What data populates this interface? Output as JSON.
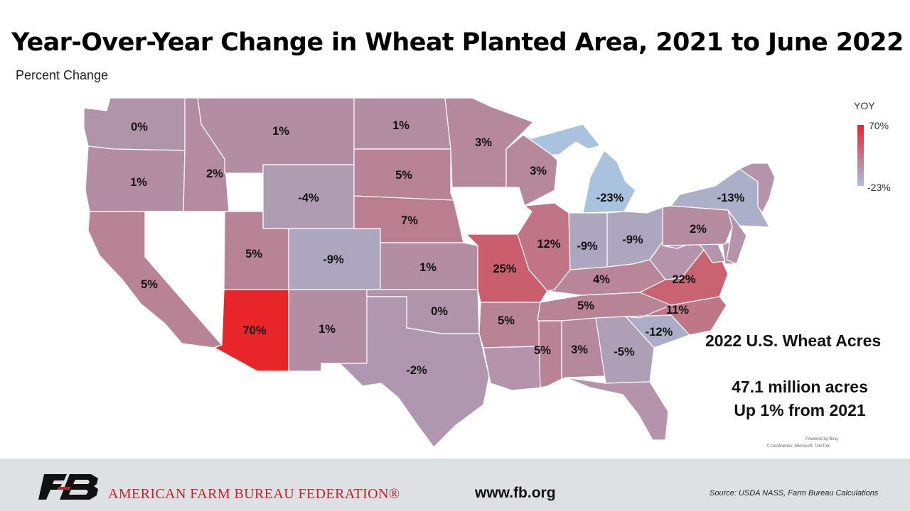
{
  "title": "Year-Over-Year Change in Wheat Planted Area, 2021 to June 2022",
  "subtitle": "Percent Change",
  "legend": {
    "title": "YOY",
    "max": "70%",
    "min": "-23%",
    "max_color": "#e8262a",
    "min_color": "#a9c3df"
  },
  "states": [
    {
      "id": "WA",
      "value": 0,
      "label": "0%"
    },
    {
      "id": "OR",
      "value": 1,
      "label": "1%"
    },
    {
      "id": "CA",
      "value": 5,
      "label": "5%"
    },
    {
      "id": "NV",
      "value": null,
      "label": ""
    },
    {
      "id": "ID",
      "value": 2,
      "label": "2%"
    },
    {
      "id": "MT",
      "value": 1,
      "label": "1%"
    },
    {
      "id": "WY",
      "value": -4,
      "label": "-4%"
    },
    {
      "id": "UT",
      "value": 5,
      "label": "5%"
    },
    {
      "id": "AZ",
      "value": 70,
      "label": "70%"
    },
    {
      "id": "CO",
      "value": -9,
      "label": "-9%"
    },
    {
      "id": "NM",
      "value": 1,
      "label": "1%"
    },
    {
      "id": "ND",
      "value": 1,
      "label": "1%"
    },
    {
      "id": "SD",
      "value": 5,
      "label": "5%"
    },
    {
      "id": "NE",
      "value": 7,
      "label": "7%"
    },
    {
      "id": "KS",
      "value": 1,
      "label": "1%"
    },
    {
      "id": "OK",
      "value": 0,
      "label": "0%"
    },
    {
      "id": "TX",
      "value": -2,
      "label": "-2%"
    },
    {
      "id": "MN",
      "value": 3,
      "label": "3%"
    },
    {
      "id": "IA",
      "value": null,
      "label": ""
    },
    {
      "id": "MO",
      "value": 25,
      "label": "25%"
    },
    {
      "id": "AR",
      "value": 5,
      "label": "5%"
    },
    {
      "id": "LA",
      "value": null,
      "label": ""
    },
    {
      "id": "WI",
      "value": 3,
      "label": "3%"
    },
    {
      "id": "IL",
      "value": 12,
      "label": "12%"
    },
    {
      "id": "MI",
      "value": -23,
      "label": "-23%"
    },
    {
      "id": "IN",
      "value": -9,
      "label": "-9%"
    },
    {
      "id": "OH",
      "value": -9,
      "label": "-9%"
    },
    {
      "id": "KY",
      "value": 4,
      "label": "4%"
    },
    {
      "id": "TN",
      "value": 5,
      "label": "5%"
    },
    {
      "id": "MS",
      "value": 5,
      "label": "5%"
    },
    {
      "id": "AL",
      "value": 3,
      "label": "3%"
    },
    {
      "id": "GA",
      "value": -5,
      "label": "-5%"
    },
    {
      "id": "FL",
      "value": null,
      "label": ""
    },
    {
      "id": "SC",
      "value": -12,
      "label": "-12%"
    },
    {
      "id": "NC",
      "value": 11,
      "label": "11%"
    },
    {
      "id": "VA",
      "value": 22,
      "label": "22%"
    },
    {
      "id": "WV",
      "value": null,
      "label": ""
    },
    {
      "id": "MD",
      "value": null,
      "label": ""
    },
    {
      "id": "DE",
      "value": null,
      "label": ""
    },
    {
      "id": "PA",
      "value": 2,
      "label": "2%"
    },
    {
      "id": "NY",
      "value": -13,
      "label": "-13%"
    },
    {
      "id": "NJ",
      "value": null,
      "label": ""
    },
    {
      "id": "NE_REGION",
      "value": null,
      "label": ""
    }
  ],
  "summary": {
    "title": "2022 U.S. Wheat Acres",
    "line1": "47.1 million acres",
    "line2": "Up 1% from 2021"
  },
  "map_credits": {
    "powered": "Powered by Bing",
    "attribution": "© GeoNames, Microsoft, TomTom"
  },
  "footer": {
    "organization": "AMERICAN FARM BUREAU FEDERATION®",
    "url": "www.fb.org",
    "source": "Source: USDA NASS, Farm Bureau Calculations"
  }
}
